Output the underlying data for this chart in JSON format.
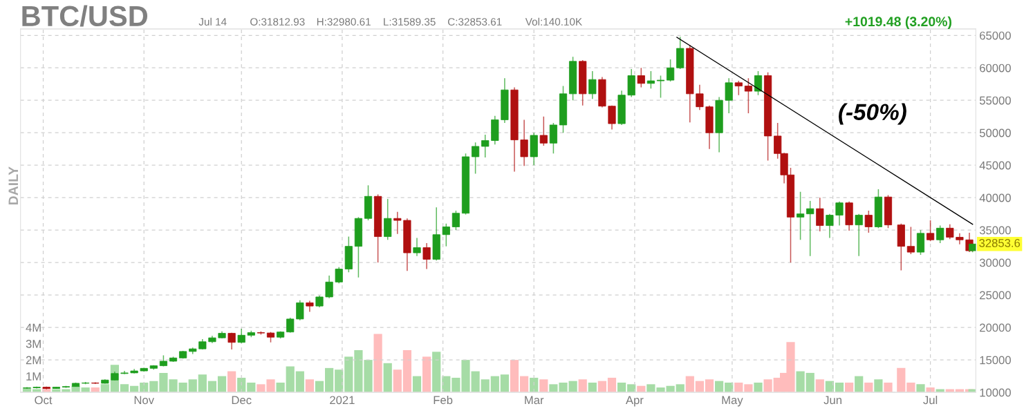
{
  "chart_data": {
    "type": "candlestick",
    "title": "BTC/USD",
    "annotations": [
      "DAILY",
      "Jul 14",
      "O:31812.93",
      "H:32980.61",
      "L:31589.35",
      "C:32853.61",
      "Vol:140.10K",
      "+1019.48 (3.20%)",
      "(-50%)",
      {
        "text": "32853.6",
        "x": "2021-07-14",
        "y": 32853.6
      }
    ],
    "x": [
      "2020-09-26",
      "2020-09-29",
      "2020-10-02",
      "2020-10-05",
      "2020-10-08",
      "2020-10-11",
      "2020-10-14",
      "2020-10-17",
      "2020-10-20",
      "2020-10-23",
      "2020-10-26",
      "2020-10-29",
      "2020-11-01",
      "2020-11-04",
      "2020-11-07",
      "2020-11-10",
      "2020-11-13",
      "2020-11-16",
      "2020-11-19",
      "2020-11-22",
      "2020-11-25",
      "2020-11-28",
      "2020-12-01",
      "2020-12-04",
      "2020-12-07",
      "2020-12-10",
      "2020-12-13",
      "2020-12-16",
      "2020-12-19",
      "2020-12-22",
      "2020-12-25",
      "2020-12-28",
      "2020-12-31",
      "2021-01-03",
      "2021-01-06",
      "2021-01-09",
      "2021-01-12",
      "2021-01-15",
      "2021-01-18",
      "2021-01-21",
      "2021-01-24",
      "2021-01-27",
      "2021-01-30",
      "2021-02-02",
      "2021-02-05",
      "2021-02-08",
      "2021-02-11",
      "2021-02-14",
      "2021-02-17",
      "2021-02-20",
      "2021-02-23",
      "2021-02-26",
      "2021-03-01",
      "2021-03-04",
      "2021-03-07",
      "2021-03-10",
      "2021-03-13",
      "2021-03-16",
      "2021-03-19",
      "2021-03-22",
      "2021-03-25",
      "2021-03-28",
      "2021-03-31",
      "2021-04-03",
      "2021-04-06",
      "2021-04-09",
      "2021-04-12",
      "2021-04-15",
      "2021-04-18",
      "2021-04-21",
      "2021-04-24",
      "2021-04-27",
      "2021-04-30",
      "2021-05-03",
      "2021-05-06",
      "2021-05-09",
      "2021-05-12",
      "2021-05-15",
      "2021-05-17",
      "2021-05-19",
      "2021-05-22",
      "2021-05-25",
      "2021-05-28",
      "2021-05-31",
      "2021-06-03",
      "2021-06-06",
      "2021-06-09",
      "2021-06-12",
      "2021-06-15",
      "2021-06-18",
      "2021-06-22",
      "2021-06-25",
      "2021-06-28",
      "2021-07-01",
      "2021-07-04",
      "2021-07-07",
      "2021-07-10",
      "2021-07-13",
      "2021-07-14"
    ],
    "ohlc": [
      [
        10650,
        10800,
        10550,
        10700
      ],
      [
        10700,
        10900,
        10600,
        10800
      ],
      [
        10800,
        10900,
        10450,
        10600
      ],
      [
        10600,
        10850,
        10550,
        10800
      ],
      [
        10800,
        11000,
        10700,
        10900
      ],
      [
        10900,
        11500,
        10850,
        11400
      ],
      [
        11400,
        11600,
        11250,
        11450
      ],
      [
        11450,
        11550,
        11300,
        11400
      ],
      [
        11400,
        12000,
        11350,
        11900
      ],
      [
        11900,
        13200,
        11850,
        12900
      ],
      [
        12900,
        13300,
        12800,
        13000
      ],
      [
        13000,
        13600,
        12900,
        13300
      ],
      [
        13300,
        13800,
        13200,
        13700
      ],
      [
        13700,
        14200,
        13500,
        14100
      ],
      [
        14100,
        15700,
        14000,
        14800
      ],
      [
        14800,
        15500,
        14700,
        15300
      ],
      [
        15300,
        16400,
        15200,
        16300
      ],
      [
        16300,
        16900,
        15900,
        16700
      ],
      [
        16700,
        18200,
        16600,
        17800
      ],
      [
        17800,
        18700,
        17600,
        18400
      ],
      [
        18400,
        19400,
        18300,
        19100
      ],
      [
        19100,
        19200,
        16600,
        17700
      ],
      [
        17700,
        19800,
        17600,
        18800
      ],
      [
        18800,
        19500,
        18500,
        19200
      ],
      [
        19200,
        19400,
        18900,
        19150
      ],
      [
        19150,
        19300,
        17700,
        18500
      ],
      [
        18500,
        19400,
        18300,
        19300
      ],
      [
        19300,
        21500,
        19200,
        21300
      ],
      [
        21300,
        24200,
        21100,
        23800
      ],
      [
        23800,
        24100,
        22400,
        23300
      ],
      [
        23300,
        24900,
        23100,
        24700
      ],
      [
        24700,
        28000,
        24500,
        27000
      ],
      [
        27000,
        29300,
        26800,
        29000
      ],
      [
        29000,
        34000,
        28500,
        32500
      ],
      [
        32500,
        37000,
        27700,
        36800
      ],
      [
        36800,
        41900,
        36500,
        40200
      ],
      [
        40200,
        40500,
        30000,
        34000
      ],
      [
        34000,
        39800,
        33500,
        36800
      ],
      [
        36800,
        37800,
        34400,
        36500
      ],
      [
        36500,
        36800,
        28700,
        31500
      ],
      [
        31500,
        33800,
        31000,
        32300
      ],
      [
        32300,
        33000,
        29000,
        30500
      ],
      [
        30500,
        38500,
        30300,
        34300
      ],
      [
        34300,
        36000,
        32500,
        35500
      ],
      [
        35500,
        38000,
        35000,
        37600
      ],
      [
        37600,
        46800,
        37400,
        46300
      ],
      [
        46300,
        48500,
        43700,
        47900
      ],
      [
        47900,
        49700,
        46200,
        48800
      ],
      [
        48800,
        52600,
        48200,
        52000
      ],
      [
        52000,
        58400,
        51500,
        56600
      ],
      [
        56600,
        57000,
        44000,
        48900
      ],
      [
        48900,
        52000,
        44900,
        46300
      ],
      [
        46300,
        50000,
        45000,
        49600
      ],
      [
        49600,
        52500,
        48000,
        48400
      ],
      [
        48400,
        51500,
        46800,
        51200
      ],
      [
        51200,
        57200,
        50000,
        56000
      ],
      [
        56000,
        61700,
        55000,
        61000
      ],
      [
        61000,
        61200,
        54200,
        56000
      ],
      [
        56000,
        59500,
        55200,
        58200
      ],
      [
        58200,
        58600,
        53900,
        54100
      ],
      [
        54100,
        54200,
        50500,
        51400
      ],
      [
        51400,
        56500,
        51200,
        55800
      ],
      [
        55800,
        59800,
        55500,
        58800
      ],
      [
        58800,
        60000,
        57000,
        57600
      ],
      [
        57600,
        59500,
        56800,
        58000
      ],
      [
        58000,
        58800,
        55400,
        58100
      ],
      [
        58100,
        61300,
        57900,
        60000
      ],
      [
        60000,
        64800,
        59800,
        63000
      ],
      [
        63000,
        63500,
        51600,
        56000
      ],
      [
        56000,
        57400,
        53500,
        54000
      ],
      [
        54000,
        54200,
        47500,
        50000
      ],
      [
        50000,
        55500,
        47000,
        55000
      ],
      [
        55000,
        58400,
        53000,
        57700
      ],
      [
        57700,
        58000,
        55800,
        57200
      ],
      [
        57200,
        58400,
        53000,
        56400
      ],
      [
        56400,
        59500,
        55800,
        58800
      ],
      [
        58800,
        59300,
        45700,
        49500
      ],
      [
        49500,
        51500,
        46000,
        46800
      ],
      [
        46800,
        46900,
        42200,
        43500
      ],
      [
        43500,
        44600,
        30000,
        37000
      ],
      [
        37000,
        40900,
        33500,
        37500
      ],
      [
        37500,
        39500,
        31000,
        38300
      ],
      [
        38300,
        40000,
        34800,
        35700
      ],
      [
        35700,
        37500,
        33800,
        37300
      ],
      [
        37300,
        39400,
        35700,
        39200
      ],
      [
        39200,
        39400,
        34900,
        35800
      ],
      [
        35800,
        37500,
        31000,
        37300
      ],
      [
        37300,
        38000,
        34600,
        35500
      ],
      [
        35500,
        41300,
        35300,
        40100
      ],
      [
        40100,
        40400,
        35300,
        35800
      ],
      [
        35800,
        36000,
        28800,
        32500
      ],
      [
        32500,
        35500,
        31300,
        31600
      ],
      [
        31600,
        35000,
        31200,
        34500
      ],
      [
        34500,
        36500,
        33300,
        33500
      ],
      [
        33500,
        35700,
        33000,
        35300
      ],
      [
        35300,
        35900,
        33600,
        33900
      ],
      [
        33900,
        34500,
        32800,
        33500
      ],
      [
        33500,
        34600,
        31600,
        31812.93
      ],
      [
        31812.93,
        32980.61,
        31589.35,
        32853.61
      ]
    ],
    "colors": [
      "#1e9e1e",
      "#1e9e1e",
      "#b01010",
      "#1e9e1e",
      "#1e9e1e",
      "#1e9e1e",
      "#1e9e1e",
      "#b01010",
      "#1e9e1e",
      "#1e9e1e",
      "#1e9e1e",
      "#1e9e1e",
      "#1e9e1e",
      "#1e9e1e",
      "#1e9e1e",
      "#1e9e1e",
      "#1e9e1e",
      "#1e9e1e",
      "#1e9e1e",
      "#1e9e1e",
      "#1e9e1e",
      "#b01010",
      "#1e9e1e",
      "#1e9e1e",
      "#b01010",
      "#b01010",
      "#1e9e1e",
      "#1e9e1e",
      "#1e9e1e",
      "#b01010",
      "#1e9e1e",
      "#1e9e1e",
      "#1e9e1e",
      "#1e9e1e",
      "#1e9e1e",
      "#1e9e1e",
      "#b01010",
      "#1e9e1e",
      "#b01010",
      "#b01010",
      "#1e9e1e",
      "#b01010",
      "#1e9e1e",
      "#1e9e1e",
      "#1e9e1e",
      "#1e9e1e",
      "#1e9e1e",
      "#1e9e1e",
      "#1e9e1e",
      "#1e9e1e",
      "#b01010",
      "#b01010",
      "#1e9e1e",
      "#b01010",
      "#1e9e1e",
      "#1e9e1e",
      "#1e9e1e",
      "#b01010",
      "#1e9e1e",
      "#b01010",
      "#b01010",
      "#1e9e1e",
      "#1e9e1e",
      "#b01010",
      "#1e9e1e",
      "#1e9e1e",
      "#1e9e1e",
      "#1e9e1e",
      "#b01010",
      "#b01010",
      "#b01010",
      "#1e9e1e",
      "#1e9e1e",
      "#b01010",
      "#b01010",
      "#1e9e1e",
      "#b01010",
      "#b01010",
      "#b01010",
      "#b01010",
      "#1e9e1e",
      "#1e9e1e",
      "#b01010",
      "#1e9e1e",
      "#1e9e1e",
      "#b01010",
      "#1e9e1e",
      "#b01010",
      "#1e9e1e",
      "#b01010",
      "#b01010",
      "#b01010",
      "#1e9e1e",
      "#b01010",
      "#1e9e1e",
      "#b01010",
      "#b01010",
      "#b01010",
      "#1e9e1e"
    ],
    "series": [
      {
        "type": "bar",
        "axis": "y2",
        "values": [
          0.3,
          0.2,
          0.3,
          0.2,
          0.2,
          0.4,
          0.3,
          0.3,
          0.5,
          1.7,
          0.5,
          0.4,
          0.6,
          0.7,
          1.2,
          0.8,
          0.6,
          0.8,
          1.1,
          0.7,
          1.0,
          1.3,
          0.9,
          0.6,
          0.5,
          0.8,
          0.6,
          1.6,
          1.3,
          0.8,
          0.7,
          1.5,
          1.4,
          2.2,
          2.6,
          2.0,
          3.6,
          1.8,
          1.4,
          2.6,
          1.0,
          2.2,
          2.5,
          1.0,
          0.9,
          2.0,
          1.3,
          0.8,
          1.0,
          1.1,
          2.0,
          1.0,
          0.9,
          0.8,
          0.5,
          0.6,
          0.7,
          0.8,
          0.6,
          0.7,
          0.9,
          0.6,
          0.5,
          0.4,
          0.5,
          0.3,
          0.4,
          0.5,
          1.0,
          0.7,
          0.8,
          0.7,
          0.6,
          0.6,
          0.5,
          0.6,
          0.8,
          0.9,
          1.2,
          3.1,
          1.3,
          1.2,
          0.8,
          0.7,
          0.6,
          0.6,
          1.0,
          0.6,
          0.8,
          0.6,
          1.5,
          0.6,
          0.5,
          0.3,
          0.2,
          0.2,
          0.2,
          0.2,
          0.2
        ],
        "colors": [
          "#a6dca6",
          "#a6dca6",
          "#ffbcbc",
          "#a6dca6",
          "#a6dca6",
          "#a6dca6",
          "#a6dca6",
          "#ffbcbc",
          "#a6dca6",
          "#a6dca6",
          "#a6dca6",
          "#a6dca6",
          "#a6dca6",
          "#a6dca6",
          "#a6dca6",
          "#a6dca6",
          "#a6dca6",
          "#a6dca6",
          "#a6dca6",
          "#a6dca6",
          "#a6dca6",
          "#ffbcbc",
          "#a6dca6",
          "#a6dca6",
          "#ffbcbc",
          "#ffbcbc",
          "#a6dca6",
          "#a6dca6",
          "#a6dca6",
          "#ffbcbc",
          "#a6dca6",
          "#a6dca6",
          "#a6dca6",
          "#a6dca6",
          "#a6dca6",
          "#a6dca6",
          "#ffbcbc",
          "#a6dca6",
          "#ffbcbc",
          "#ffbcbc",
          "#a6dca6",
          "#ffbcbc",
          "#a6dca6",
          "#a6dca6",
          "#a6dca6",
          "#a6dca6",
          "#a6dca6",
          "#a6dca6",
          "#a6dca6",
          "#a6dca6",
          "#ffbcbc",
          "#ffbcbc",
          "#a6dca6",
          "#ffbcbc",
          "#a6dca6",
          "#a6dca6",
          "#a6dca6",
          "#ffbcbc",
          "#a6dca6",
          "#ffbcbc",
          "#ffbcbc",
          "#a6dca6",
          "#a6dca6",
          "#ffbcbc",
          "#a6dca6",
          "#a6dca6",
          "#a6dca6",
          "#a6dca6",
          "#ffbcbc",
          "#ffbcbc",
          "#ffbcbc",
          "#a6dca6",
          "#a6dca6",
          "#ffbcbc",
          "#ffbcbc",
          "#a6dca6",
          "#ffbcbc",
          "#ffbcbc",
          "#ffbcbc",
          "#ffbcbc",
          "#a6dca6",
          "#a6dca6",
          "#ffbcbc",
          "#a6dca6",
          "#a6dca6",
          "#ffbcbc",
          "#a6dca6",
          "#ffbcbc",
          "#a6dca6",
          "#ffbcbc",
          "#ffbcbc",
          "#ffbcbc",
          "#a6dca6",
          "#ffbcbc",
          "#a6dca6",
          "#ffbcbc",
          "#ffbcbc",
          "#ffbcbc",
          "#a6dca6"
        ]
      },
      {
        "type": "line",
        "x": [
          "2021-04-14",
          "2021-07-14"
        ],
        "values": [
          64700,
          35900
        ],
        "color": "#000000"
      }
    ],
    "xlim": [
      "2020-09-24",
      "2021-07-15"
    ],
    "xticks": [
      {
        "value": "2020-10-01",
        "label": "Oct"
      },
      {
        "value": "2020-11-01",
        "label": "Nov"
      },
      {
        "value": "2020-12-01",
        "label": "Dec"
      },
      {
        "value": "2021-01-01",
        "label": "2021"
      },
      {
        "value": "2021-02-01",
        "label": "Feb"
      },
      {
        "value": "2021-03-01",
        "label": "Mar"
      },
      {
        "value": "2021-04-01",
        "label": "Apr"
      },
      {
        "value": "2021-05-01",
        "label": "May"
      },
      {
        "value": "2021-06-01",
        "label": "Jun"
      },
      {
        "value": "2021-07-01",
        "label": "Jul"
      }
    ],
    "ylim": [
      10000,
      66000
    ],
    "yticks": [
      10000,
      15000,
      20000,
      25000,
      30000,
      35000,
      40000,
      45000,
      50000,
      55000,
      60000,
      65000
    ],
    "y2lim": [
      0,
      22.4
    ],
    "y2ticks": [
      {
        "value": 1,
        "label": "1M"
      },
      {
        "value": 2,
        "label": "2M"
      },
      {
        "value": 3,
        "label": "3M"
      },
      {
        "value": 4,
        "label": "4M"
      }
    ],
    "grid": true
  }
}
